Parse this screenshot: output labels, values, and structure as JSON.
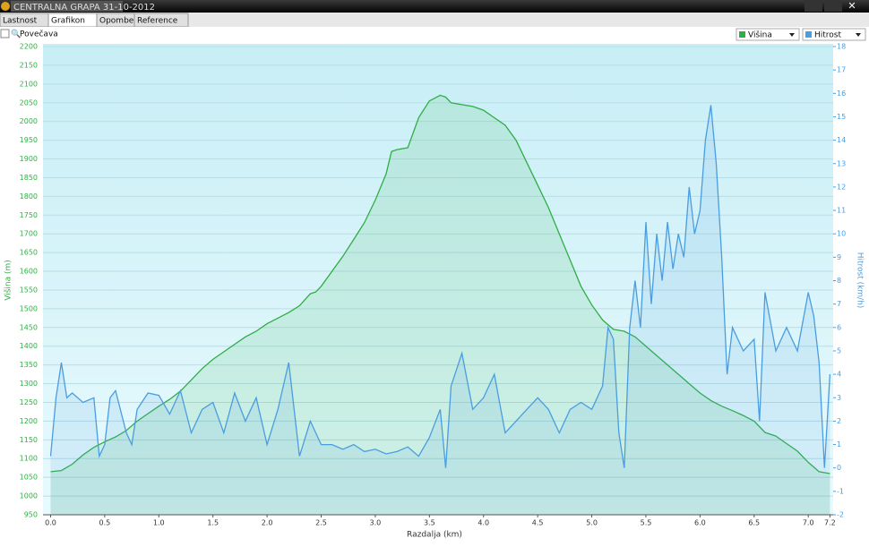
{
  "window": {
    "title": "CENTRALNA GRAPA 31-10-2012"
  },
  "tabs": [
    "Lastnost",
    "Grafikon",
    "Opombe",
    "Reference"
  ],
  "toolbar": {
    "zoom_label": "Povečava"
  },
  "chart_data": {
    "type": "line",
    "x_label": "Razdalja   (km)",
    "y_label": "Višina (m)",
    "y2_label": "Hitrost (km/h)",
    "xlim": [
      -0.07,
      7.23
    ],
    "xticks": [
      {
        "value": 0,
        "label": "0.0"
      },
      0.5,
      {
        "value": 1,
        "label": "1.0"
      },
      1.5,
      {
        "value": 2,
        "label": "2.0"
      },
      2.5,
      {
        "value": 3,
        "label": "3.0"
      },
      3.5,
      {
        "value": 4,
        "label": "4.0"
      },
      4.5,
      {
        "value": 5,
        "label": "5.0"
      },
      5.5,
      {
        "value": 6,
        "label": "6.0"
      },
      6.5,
      {
        "value": 7,
        "label": "7.0"
      },
      7.2
    ],
    "ylim": [
      950,
      2200
    ],
    "yticks": [
      950,
      1000,
      1050,
      1100,
      1150,
      1200,
      1250,
      1300,
      1350,
      1400,
      1450,
      1500,
      1550,
      1600,
      1650,
      1700,
      1750,
      1800,
      1850,
      1900,
      1950,
      2000,
      2050,
      2100,
      2150,
      2200
    ],
    "y2lim": [
      -2,
      18
    ],
    "y2ticks": [
      -2,
      -1,
      0,
      1,
      2,
      3,
      4,
      5,
      6,
      7,
      8,
      9,
      10,
      11,
      12,
      13,
      14,
      15,
      16,
      17,
      18
    ],
    "grid": true,
    "series": [
      {
        "name": "Višina",
        "color": "#2fae44",
        "x": [
          0,
          0.1,
          0.2,
          0.3,
          0.4,
          0.5,
          0.6,
          0.7,
          0.8,
          0.9,
          1,
          1.1,
          1.2,
          1.3,
          1.4,
          1.5,
          1.6,
          1.7,
          1.8,
          1.9,
          2,
          2.1,
          2.2,
          2.3,
          2.4,
          2.45,
          2.5,
          2.6,
          2.7,
          2.8,
          2.9,
          3,
          3.1,
          3.15,
          3.2,
          3.3,
          3.4,
          3.5,
          3.6,
          3.65,
          3.7,
          3.8,
          3.9,
          4,
          4.1,
          4.2,
          4.3,
          4.4,
          4.5,
          4.6,
          4.7,
          4.8,
          4.9,
          5,
          5.1,
          5.2,
          5.3,
          5.4,
          5.5,
          5.6,
          5.7,
          5.8,
          5.9,
          6,
          6.1,
          6.2,
          6.3,
          6.4,
          6.5,
          6.6,
          6.7,
          6.8,
          6.9,
          7,
          7.1,
          7.2
        ],
        "values": [
          1065,
          1068,
          1085,
          1110,
          1130,
          1145,
          1158,
          1175,
          1200,
          1220,
          1240,
          1258,
          1280,
          1310,
          1340,
          1365,
          1385,
          1405,
          1425,
          1440,
          1460,
          1475,
          1490,
          1508,
          1540,
          1545,
          1560,
          1600,
          1640,
          1685,
          1730,
          1790,
          1860,
          1920,
          1925,
          1930,
          2010,
          2055,
          2070,
          2065,
          2050,
          2045,
          2040,
          2030,
          2010,
          1990,
          1950,
          1890,
          1830,
          1770,
          1700,
          1630,
          1560,
          1510,
          1470,
          1445,
          1440,
          1425,
          1400,
          1375,
          1350,
          1325,
          1300,
          1275,
          1255,
          1240,
          1228,
          1215,
          1200,
          1170,
          1160,
          1140,
          1120,
          1090,
          1065,
          1060
        ]
      },
      {
        "name": "Hitrost",
        "color": "#4a9de0",
        "axis": "y2",
        "x": [
          0,
          0.05,
          0.1,
          0.15,
          0.2,
          0.3,
          0.4,
          0.45,
          0.5,
          0.55,
          0.6,
          0.7,
          0.75,
          0.8,
          0.9,
          1,
          1.1,
          1.2,
          1.3,
          1.4,
          1.5,
          1.6,
          1.7,
          1.8,
          1.9,
          2,
          2.1,
          2.2,
          2.3,
          2.4,
          2.5,
          2.6,
          2.7,
          2.8,
          2.9,
          3,
          3.1,
          3.2,
          3.3,
          3.4,
          3.5,
          3.6,
          3.65,
          3.7,
          3.8,
          3.9,
          4,
          4.1,
          4.2,
          4.3,
          4.4,
          4.5,
          4.6,
          4.7,
          4.8,
          4.9,
          5,
          5.1,
          5.15,
          5.2,
          5.25,
          5.3,
          5.35,
          5.4,
          5.45,
          5.5,
          5.55,
          5.6,
          5.65,
          5.7,
          5.75,
          5.8,
          5.85,
          5.9,
          5.95,
          6,
          6.05,
          6.1,
          6.15,
          6.2,
          6.25,
          6.3,
          6.4,
          6.5,
          6.55,
          6.6,
          6.7,
          6.8,
          6.9,
          7,
          7.05,
          7.1,
          7.15,
          7.2
        ],
        "values": [
          0.5,
          3,
          4.5,
          3,
          3.2,
          2.8,
          3,
          0.5,
          1,
          3,
          3.3,
          1.5,
          1,
          2.5,
          3.2,
          3.1,
          2.3,
          3.3,
          1.5,
          2.5,
          2.8,
          1.5,
          3.2,
          2,
          3,
          1,
          2.5,
          4.5,
          0.5,
          2,
          1,
          1,
          0.8,
          1,
          0.7,
          0.8,
          0.6,
          0.7,
          0.9,
          0.5,
          1.3,
          2.5,
          0,
          3.5,
          4.9,
          2.5,
          3,
          4,
          1.5,
          2,
          2.5,
          3,
          2.5,
          1.5,
          2.5,
          2.8,
          2.5,
          3.5,
          6,
          5.5,
          1.5,
          0,
          6,
          8,
          6,
          10.5,
          7,
          10,
          8,
          10.5,
          8.5,
          10,
          9,
          12,
          10,
          11,
          14,
          15.5,
          13,
          9,
          4,
          6,
          5,
          5.5,
          2,
          7.5,
          5,
          6,
          5,
          7.5,
          6.5,
          4.5,
          0,
          4
        ]
      }
    ]
  }
}
